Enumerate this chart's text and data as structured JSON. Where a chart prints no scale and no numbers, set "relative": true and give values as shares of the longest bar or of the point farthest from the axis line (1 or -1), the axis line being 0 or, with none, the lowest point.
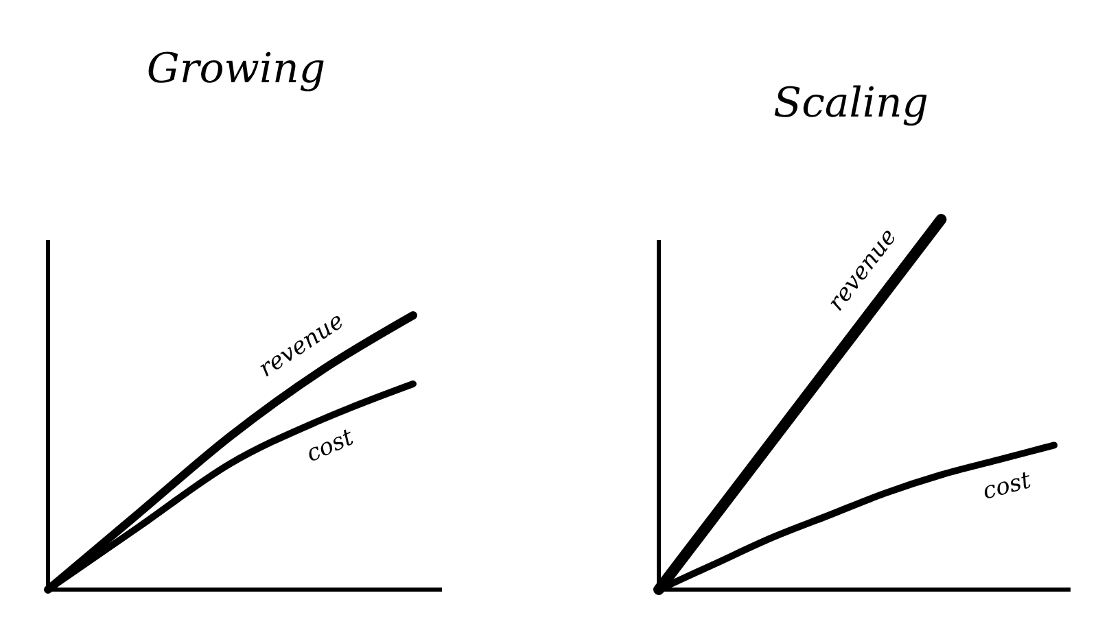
{
  "chart_data": [
    {
      "type": "line",
      "title": "Growing",
      "relative": true,
      "categories": [
        null,
        null,
        null,
        null,
        null
      ],
      "legend": false,
      "marker": "none",
      "line_style": "solid",
      "series": [
        {
          "name": "revenue",
          "color": "#000000",
          "values": [
            0,
            0.28,
            0.56,
            0.8,
            1
          ]
        },
        {
          "name": "cost",
          "color": "#000000",
          "values": [
            0,
            0.23,
            0.46,
            0.62,
            0.75
          ]
        }
      ]
    },
    {
      "type": "line",
      "title": "Scaling",
      "relative": true,
      "categories": [
        null,
        null,
        null,
        null,
        null,
        null,
        null,
        null
      ],
      "legend": false,
      "marker": "none",
      "line_style": "solid",
      "series": [
        {
          "name": "revenue",
          "color": "#000000",
          "values": [
            0,
            0.2,
            0.4,
            0.6,
            0.8,
            1,
            null,
            null
          ]
        },
        {
          "name": "cost",
          "color": "#000000",
          "values": [
            0,
            0.07,
            0.14,
            0.2,
            0.26,
            0.31,
            0.35,
            0.39
          ]
        }
      ]
    }
  ]
}
